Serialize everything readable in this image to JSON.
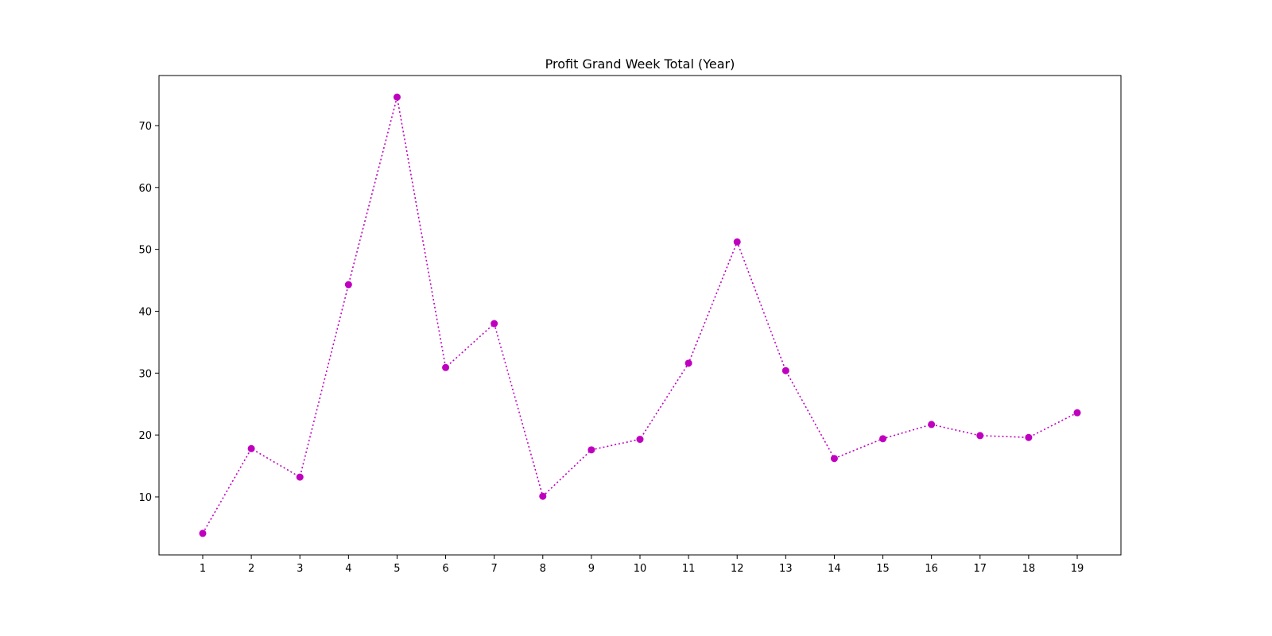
{
  "chart_data": {
    "type": "line",
    "title": "Profit Grand Week Total (Year)",
    "x": [
      1,
      2,
      3,
      4,
      5,
      6,
      7,
      8,
      9,
      10,
      11,
      12,
      13,
      14,
      15,
      16,
      17,
      18,
      19
    ],
    "series": [
      {
        "color": "#bf00bf",
        "values": [
          4.1,
          17.8,
          13.2,
          44.3,
          74.6,
          30.9,
          38.0,
          10.1,
          17.6,
          19.3,
          31.6,
          51.2,
          30.4,
          16.2,
          19.4,
          21.7,
          19.9,
          19.6,
          23.6
        ]
      }
    ],
    "xlim": [
      0.1,
      19.9
    ],
    "xticks": [
      1,
      2,
      3,
      4,
      5,
      6,
      7,
      8,
      9,
      10,
      11,
      12,
      13,
      14,
      15,
      16,
      17,
      18,
      19
    ],
    "ylim": [
      0.62,
      78.09
    ],
    "yticks": [
      10,
      20,
      30,
      40,
      50,
      60,
      70
    ],
    "line_style": "dotted",
    "grid": false
  }
}
